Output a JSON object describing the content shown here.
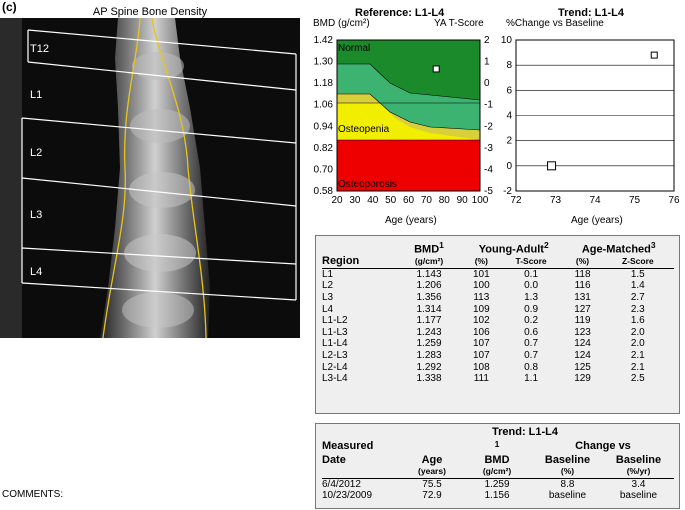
{
  "figure_label": "(c)",
  "scan": {
    "title": "AP Spine Bone Density",
    "vertebrae": [
      "T12",
      "L1",
      "L2",
      "L3",
      "L4"
    ]
  },
  "reference_chart": {
    "title": "Reference: L1-L4",
    "left_axis_title": "BMD (g/cm²)",
    "right_axis_title": "YA T-Score",
    "xlabel": "Age (years)",
    "x_ticks": [
      "20",
      "30",
      "40",
      "50",
      "60",
      "70",
      "80",
      "90",
      "100"
    ],
    "y_ticks": [
      "1.42",
      "1.30",
      "1.18",
      "1.06",
      "0.94",
      "0.82",
      "0.70",
      "0.58"
    ],
    "right_ticks": [
      "2",
      "1",
      "0",
      "-1",
      "-2",
      "-3",
      "-4",
      "-5"
    ],
    "zones": [
      "Normal",
      "Osteopenia",
      "Osteoporosis"
    ],
    "colors": {
      "normal": "#1a8a2a",
      "band_green": "#3cb371",
      "band_yellow": "#d8cf3a",
      "osteopenia": "#f2ee00",
      "osteoporosis": "#ee0000"
    }
  },
  "trend_chart": {
    "title": "Trend: L1-L4",
    "left_axis_title": "%Change vs Baseline",
    "xlabel": "Age (years)",
    "x_ticks": [
      "72",
      "73",
      "74",
      "75",
      "76"
    ],
    "y_ticks": [
      "10",
      "8",
      "6",
      "4",
      "2",
      "0",
      "-2"
    ]
  },
  "chart_data": [
    {
      "type": "scatter",
      "title": "Reference: L1-L4",
      "xlabel": "Age (years)",
      "ylabel": "BMD (g/cm²)",
      "xlim": [
        20,
        100
      ],
      "ylim": [
        0.58,
        1.42
      ],
      "points": [
        {
          "x": 75.5,
          "y": 1.259
        }
      ]
    },
    {
      "type": "scatter",
      "title": "Trend: L1-L4",
      "xlabel": "Age (years)",
      "ylabel": "%Change vs Baseline",
      "xlim": [
        72,
        76
      ],
      "ylim": [
        -2,
        10
      ],
      "points": [
        {
          "x": 72.9,
          "y": 0
        },
        {
          "x": 75.5,
          "y": 8.8
        }
      ]
    }
  ],
  "bmd_table": {
    "headers": {
      "region": "Region",
      "bmd": "BMD",
      "bmd_units": "(g/cm²)",
      "ya": "Young-Adult",
      "ya_pct": "(%)",
      "ya_t": "T-Score",
      "am": "Age-Matched",
      "am_pct": "(%)",
      "am_z": "Z-Score",
      "fn1": "1",
      "fn2": "2",
      "fn3": "3"
    },
    "rows": [
      [
        "L1",
        "1.143",
        "101",
        "0.1",
        "118",
        "1.5"
      ],
      [
        "L2",
        "1.206",
        "100",
        "0.0",
        "116",
        "1.4"
      ],
      [
        "L3",
        "1.356",
        "113",
        "1.3",
        "131",
        "2.7"
      ],
      [
        "L4",
        "1.314",
        "109",
        "0.9",
        "127",
        "2.3"
      ],
      [
        "L1-L2",
        "1.177",
        "102",
        "0.2",
        "119",
        "1.6"
      ],
      [
        "L1-L3",
        "1.243",
        "106",
        "0.6",
        "123",
        "2.0"
      ],
      [
        "L1-L4",
        "1.259",
        "107",
        "0.7",
        "124",
        "2.0"
      ],
      [
        "L2-L3",
        "1.283",
        "107",
        "0.7",
        "124",
        "2.1"
      ],
      [
        "L2-L4",
        "1.292",
        "108",
        "0.8",
        "125",
        "2.1"
      ],
      [
        "L3-L4",
        "1.338",
        "111",
        "1.1",
        "129",
        "2.5"
      ]
    ]
  },
  "trend_table": {
    "title": "Trend: L1-L4",
    "headers": {
      "date1": "Measured",
      "date2": "Date",
      "age": "Age",
      "age_units": "(years)",
      "bmd": "BMD",
      "bmd_fn": "1",
      "bmd_units": "(g/cm²)",
      "change": "Change vs",
      "baseline_pct": "Baseline",
      "baseline_pct_units": "(%)",
      "baseline_yr": "Baseline",
      "baseline_yr_units": "(%/yr)"
    },
    "rows": [
      [
        "6/4/2012",
        "75.5",
        "1.259",
        "8.8",
        "3.4"
      ],
      [
        "10/23/2009",
        "72.9",
        "1.156",
        "baseline",
        "baseline"
      ]
    ]
  },
  "comments_label": "COMMENTS:"
}
